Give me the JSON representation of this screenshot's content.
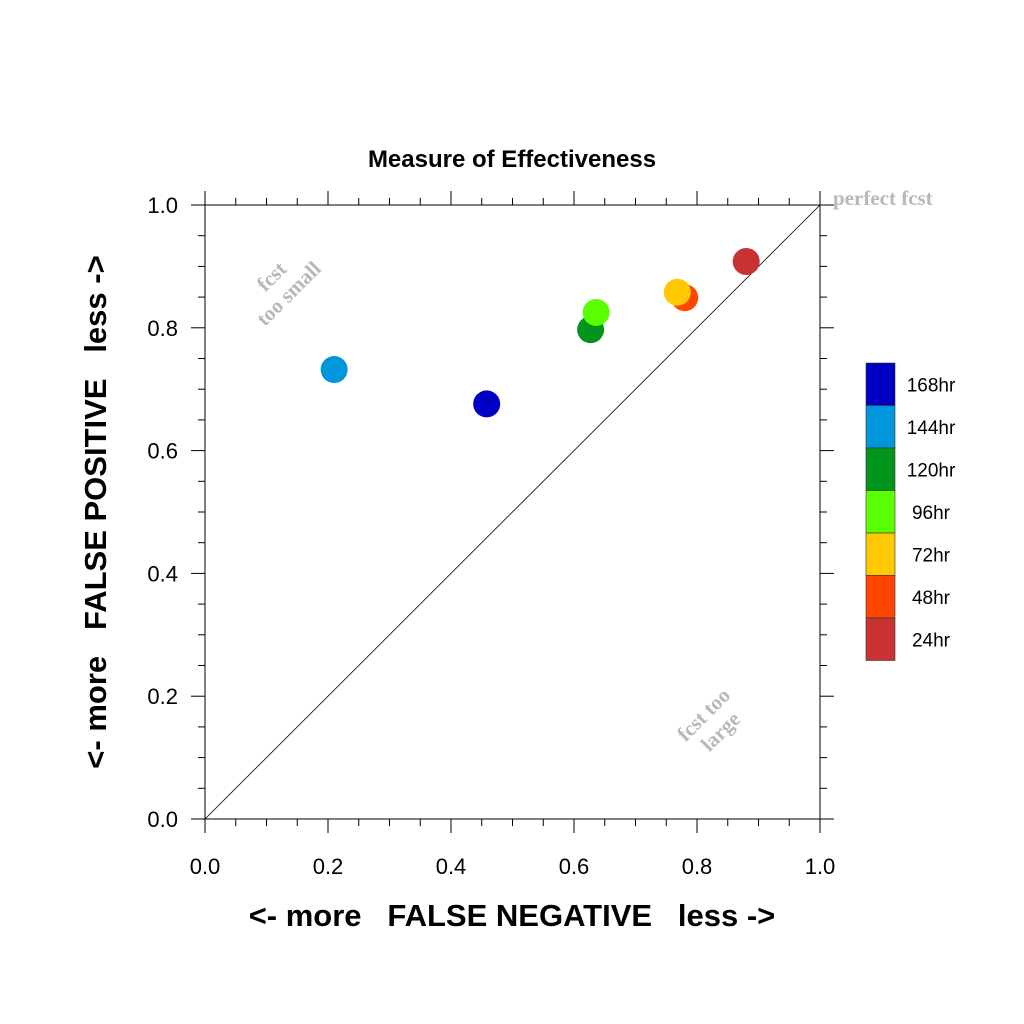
{
  "chart_data": {
    "type": "scatter",
    "title": "Measure of Effectiveness",
    "xlabel": "<- more   FALSE NEGATIVE   less ->",
    "ylabel": "<- more   FALSE POSITIVE   less ->",
    "xlim": [
      0,
      1
    ],
    "ylim": [
      0,
      1
    ],
    "x_ticks": [
      "0.0",
      "0.2",
      "0.4",
      "0.6",
      "0.8",
      "1.0"
    ],
    "y_ticks": [
      "0.0",
      "0.2",
      "0.4",
      "0.6",
      "0.8",
      "1.0"
    ],
    "grid": false,
    "diagonal_line": true,
    "annotations": {
      "perfect": "perfect fcst",
      "small_1": "fcst",
      "small_2": "too small",
      "large_1": "fcst too",
      "large_2": "large"
    },
    "legend_position": "right",
    "series": [
      {
        "name": "168hr",
        "color": "#0000c4",
        "x": 0.458,
        "y": 0.676
      },
      {
        "name": "144hr",
        "color": "#0096dc",
        "x": 0.21,
        "y": 0.732
      },
      {
        "name": "120hr",
        "color": "#00961e",
        "x": 0.627,
        "y": 0.797
      },
      {
        "name": "96hr",
        "color": "#5aff00",
        "x": 0.636,
        "y": 0.825
      },
      {
        "name": "72hr",
        "color": "#ffc800",
        "x": 0.768,
        "y": 0.858
      },
      {
        "name": "48hr",
        "color": "#ff4600",
        "x": 0.78,
        "y": 0.849
      },
      {
        "name": "24hr",
        "color": "#c83232",
        "x": 0.88,
        "y": 0.908
      }
    ],
    "draw_order": [
      "24hr",
      "144hr",
      "168hr",
      "120hr",
      "96hr",
      "48hr",
      "72hr"
    ]
  }
}
